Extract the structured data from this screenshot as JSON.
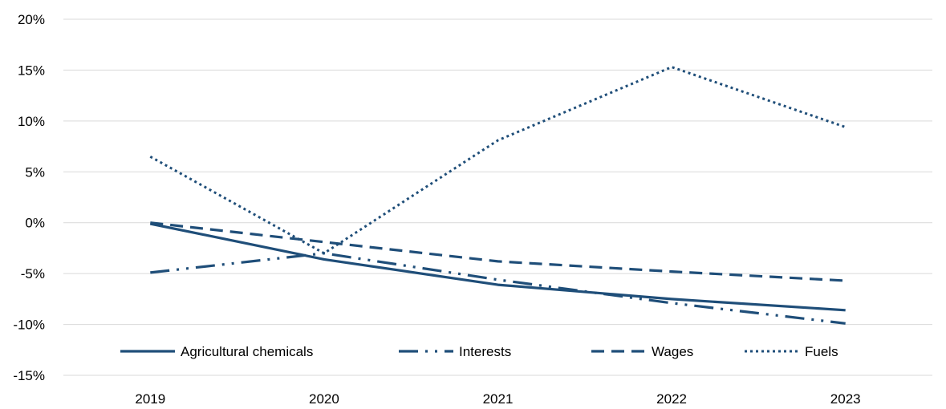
{
  "chart_data": {
    "type": "line",
    "title": "",
    "xlabel": "",
    "ylabel": "",
    "categories": [
      "2019",
      "2020",
      "2021",
      "2022",
      "2023"
    ],
    "ylim": [
      -15,
      20
    ],
    "yticks": [
      -15,
      -10,
      -5,
      0,
      5,
      10,
      15,
      20
    ],
    "y_tick_labels": [
      "-15%",
      "-10%",
      "-5%",
      "0%",
      "5%",
      "10%",
      "15%",
      "20%"
    ],
    "grid": "horizontal",
    "legend_position": "bottom-inside",
    "line_color": "#1f4e79",
    "series": [
      {
        "name": "Agricultural chemicals",
        "style": "solid",
        "values": [
          -0.1,
          -3.6,
          -6.1,
          -7.5,
          -8.6
        ]
      },
      {
        "name": "Interests",
        "style": "dash-dot-dot",
        "values": [
          -4.9,
          -3.0,
          -5.6,
          -7.9,
          -9.9
        ]
      },
      {
        "name": "Wages",
        "style": "dash",
        "values": [
          0.0,
          -1.9,
          -3.8,
          -4.8,
          -5.7
        ]
      },
      {
        "name": "Fuels",
        "style": "dot",
        "values": [
          6.5,
          -3.0,
          8.1,
          15.3,
          9.4
        ]
      }
    ]
  }
}
